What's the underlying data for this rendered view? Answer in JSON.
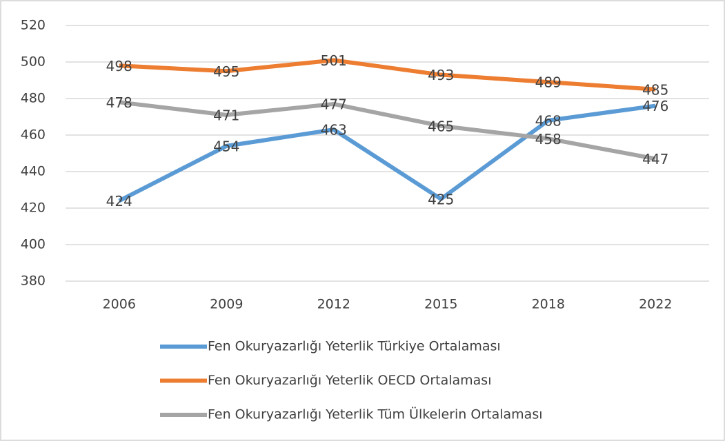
{
  "chart_data": {
    "type": "line",
    "categories": [
      "2006",
      "2009",
      "2012",
      "2015",
      "2018",
      "2022"
    ],
    "series": [
      {
        "name": "Fen Okuryazarlığı Yeterlik Türkiye Ortalaması",
        "color": "#5b9bd5",
        "values": [
          424,
          454,
          463,
          425,
          468,
          476
        ]
      },
      {
        "name": "Fen Okuryazarlığı Yeterlik OECD Ortalaması",
        "color": "#ed7d31",
        "values": [
          498,
          495,
          501,
          493,
          489,
          485
        ]
      },
      {
        "name": "Fen Okuryazarlığı Yeterlik Tüm Ülkelerin Ortalaması",
        "color": "#a5a5a5",
        "values": [
          478,
          471,
          477,
          465,
          458,
          447
        ]
      }
    ],
    "ylim": [
      380,
      520
    ],
    "yticks": [
      380,
      400,
      420,
      440,
      460,
      480,
      500,
      520
    ],
    "grid": true,
    "legend": "bottom"
  }
}
